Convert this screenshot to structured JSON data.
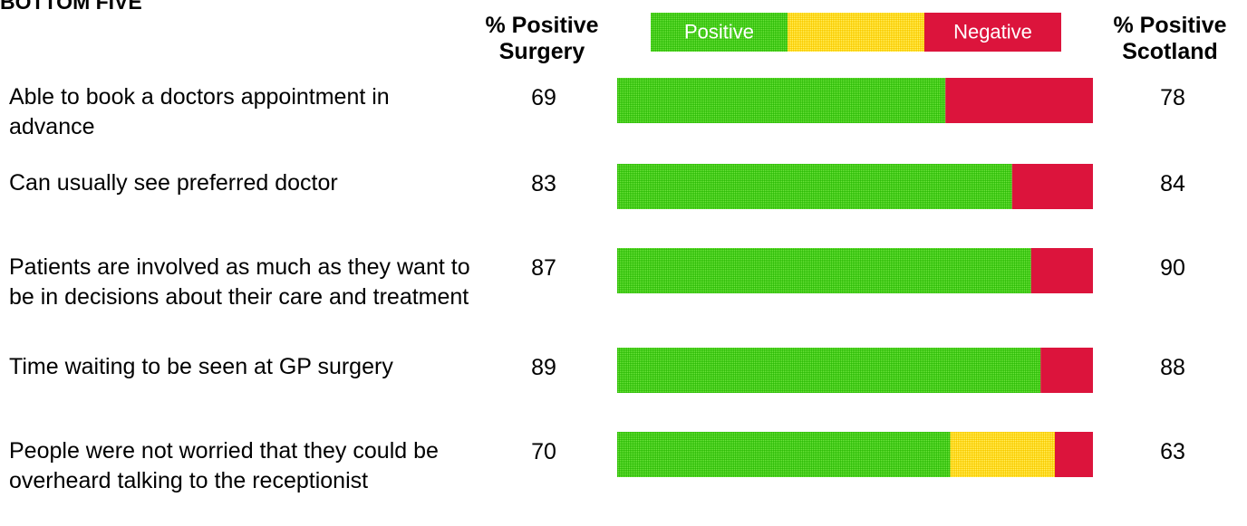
{
  "chart_data": {
    "type": "bar",
    "orientation": "horizontal",
    "stacked": true,
    "title": "BOTTOM FIVE",
    "surgery_label": "% Positive Surgery",
    "scotland_label": "% Positive Scotland",
    "categories": [
      "Able to book a doctors appointment in advance",
      "Can usually see preferred doctor",
      "Patients are involved as much as they want to be in decisions about their care and treatment",
      "Time waiting to be seen at GP surgery",
      "People were not worried that they could be overheard talking to the receptionist"
    ],
    "series": [
      {
        "name": "Positive",
        "color": "#3fcc14",
        "values": [
          69,
          83,
          87,
          89,
          70
        ]
      },
      {
        "color": "#ffd817",
        "values": [
          0,
          0,
          0,
          0,
          22
        ]
      },
      {
        "name": "Negative",
        "color": "#dc143c",
        "values": [
          31,
          17,
          13,
          11,
          8
        ]
      }
    ],
    "scotland_values": [
      78,
      84,
      90,
      88,
      63
    ],
    "xlim": [
      0,
      100
    ]
  }
}
